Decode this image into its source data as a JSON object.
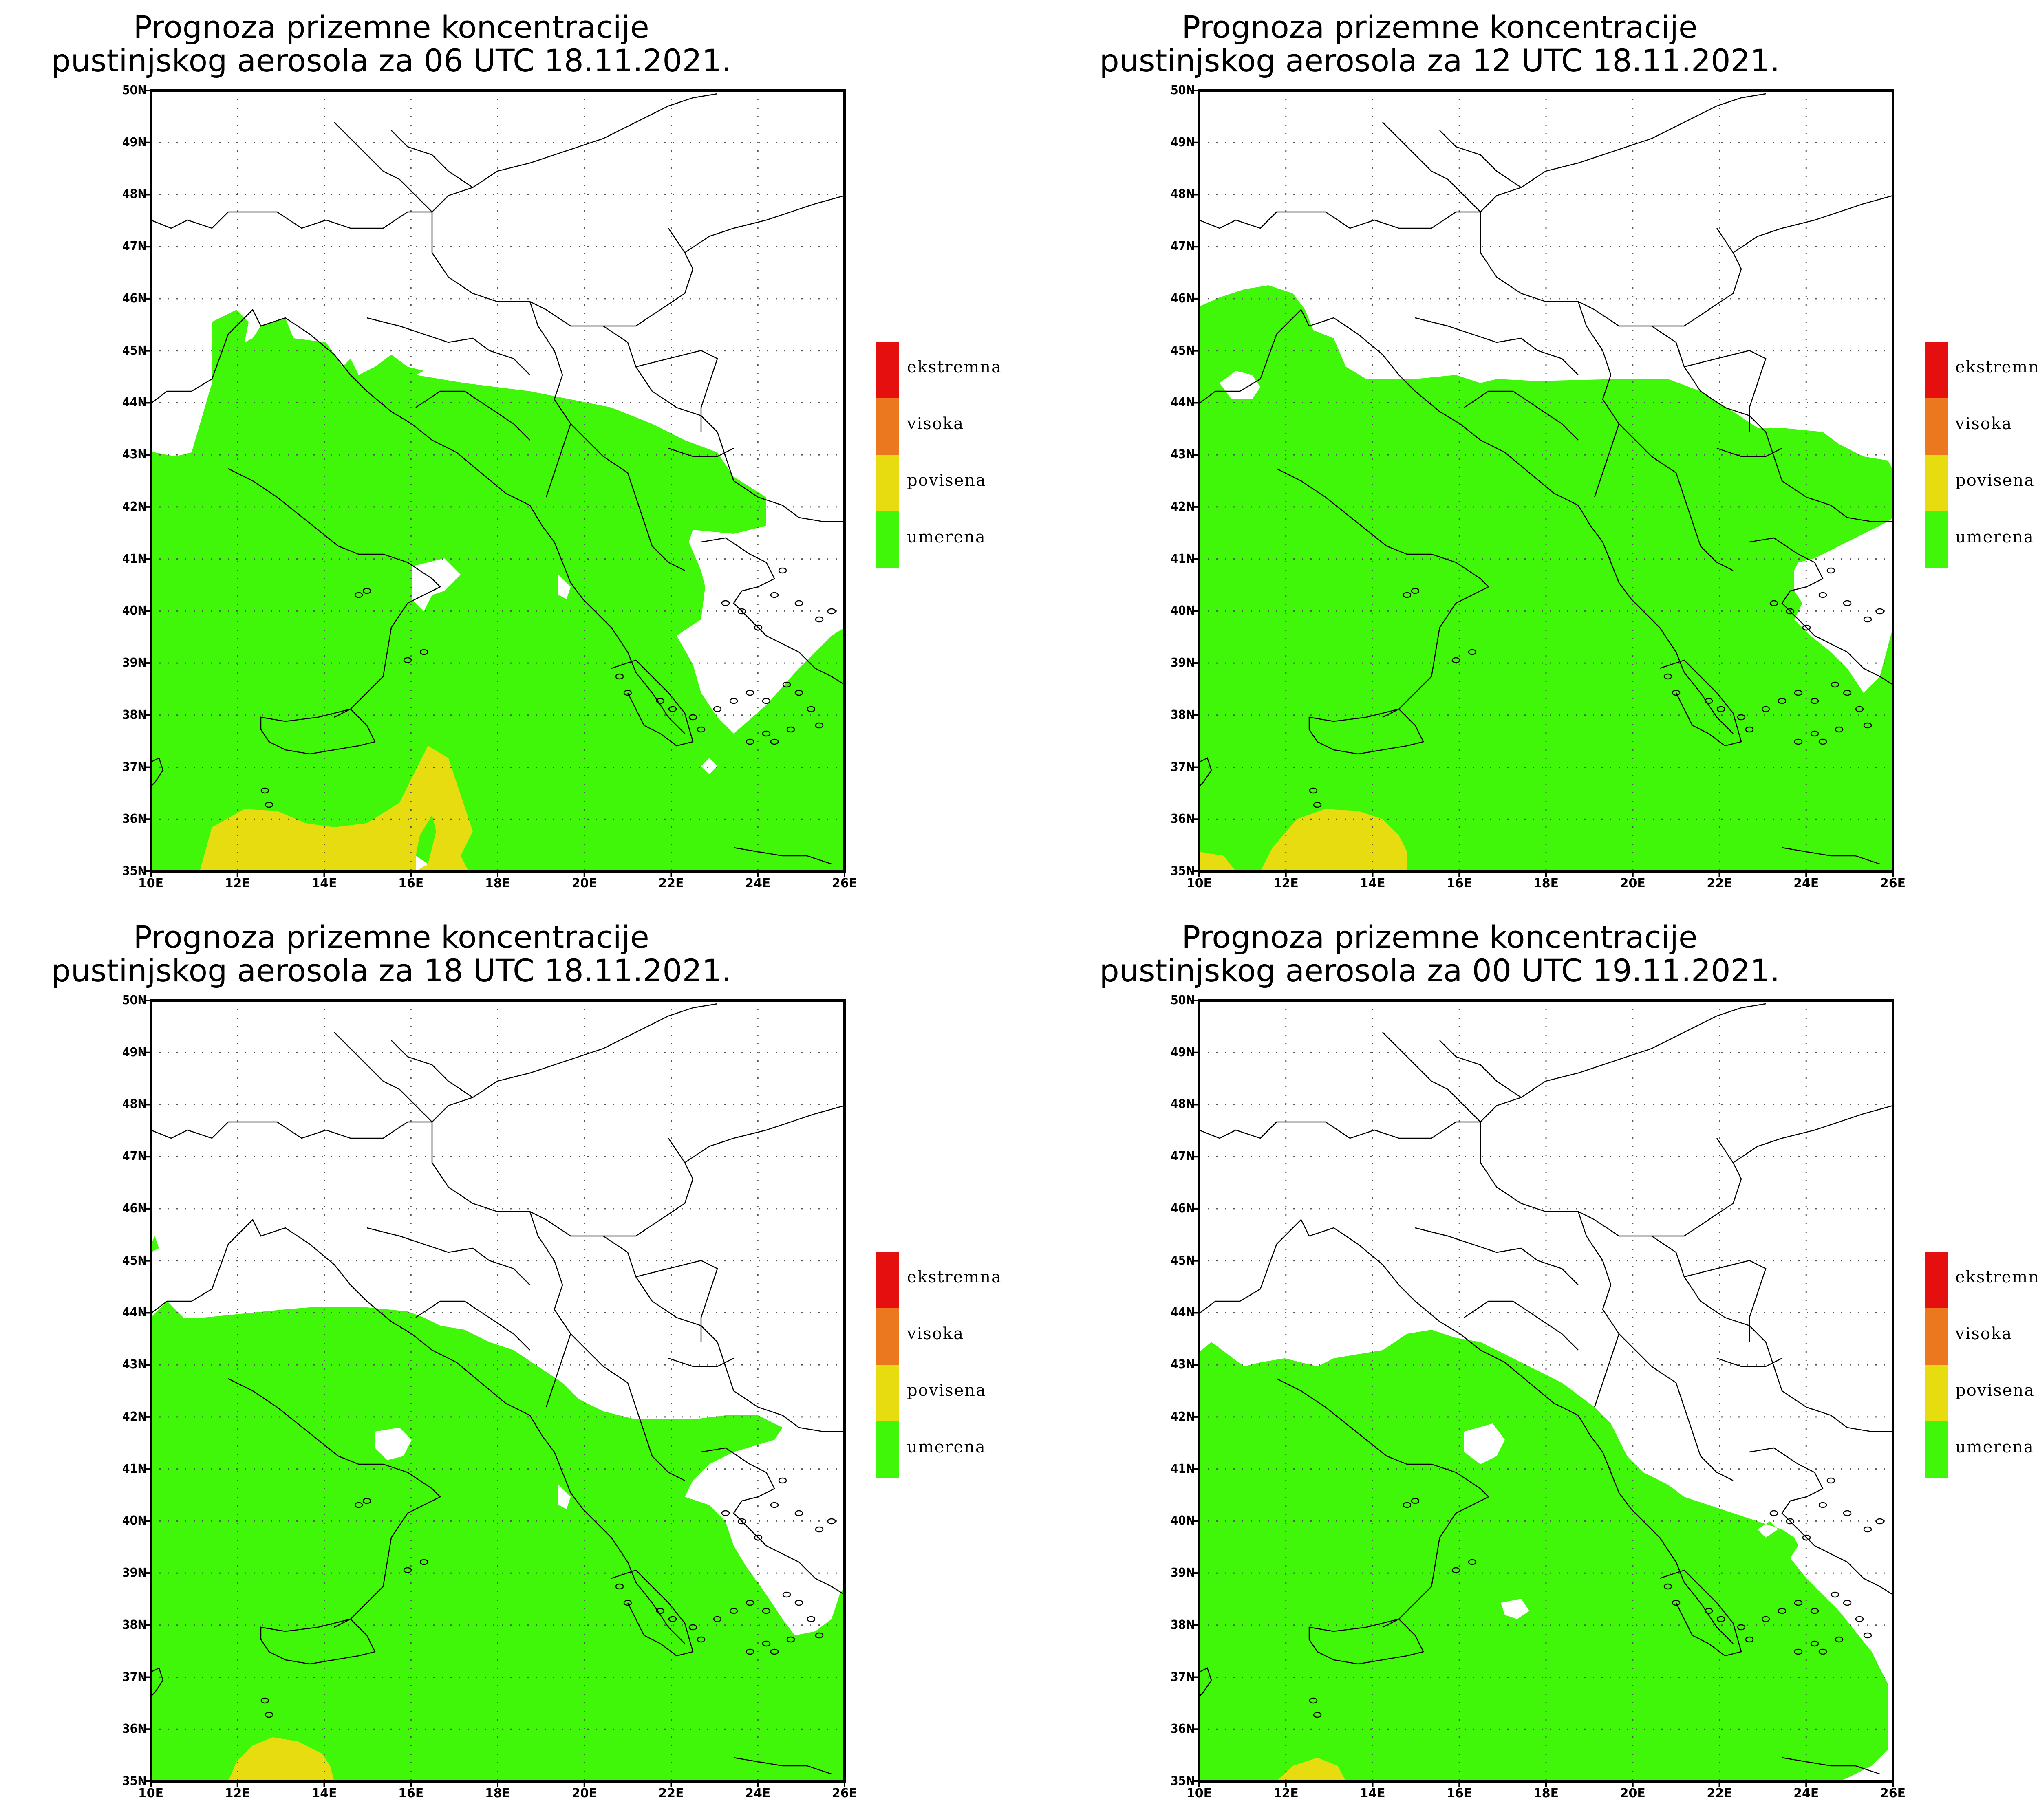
{
  "legend_colors": {
    "ekstremna": "#e60f0f",
    "visoka": "#eb781e",
    "povisena": "#e6dc10",
    "umerena": "#41f709"
  },
  "lat_labels": [
    "50N",
    "49N",
    "48N",
    "47N",
    "46N",
    "45N",
    "44N",
    "43N",
    "42N",
    "41N",
    "40N",
    "39N",
    "38N",
    "37N",
    "36N",
    "35N"
  ],
  "lon_labels": [
    "10E",
    "12E",
    "14E",
    "16E",
    "18E",
    "20E",
    "22E",
    "24E",
    "26E"
  ],
  "legend": [
    "ekstremna",
    "visoka",
    "povisena",
    "umerena"
  ],
  "panels": [
    {
      "title_line1": "Prognoza prizemne koncentracije",
      "title_line2": "pustinjskog aerosola za 06 UTC 18.11.2021."
    },
    {
      "title_line1": "Prognoza prizemne koncentracije",
      "title_line2": "pustinjskog aerosola za 12 UTC 18.11.2021."
    },
    {
      "title_line1": "Prognoza prizemne koncentracije",
      "title_line2": "pustinjskog aerosola za 18 UTC 18.11.2021."
    },
    {
      "title_line1": "Prognoza prizemne koncentracije",
      "title_line2": "pustinjskog aerosola za 00 UTC 19.11.2021."
    }
  ]
}
